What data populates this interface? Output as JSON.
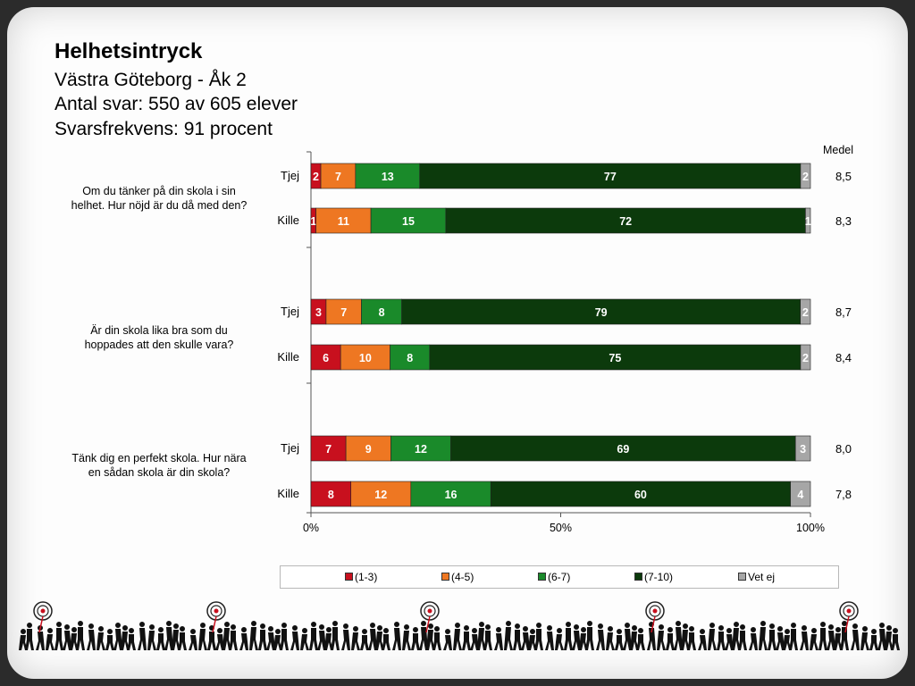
{
  "header": {
    "title": "Helhetsintryck",
    "subtitle": "Västra Göteborg - Åk 2",
    "answers": "Antal svar: 550 av 605 elever",
    "response_rate": "Svarsfrekvens: 91 procent"
  },
  "colors": {
    "c1_3": "#c8101e",
    "c4_5": "#ee7722",
    "c6_7": "#1a8a2a",
    "c7_10": "#0c3a0c",
    "vet_ej": "#a6a6a6"
  },
  "chart_data": {
    "type": "bar",
    "orientation": "horizontal",
    "stacked": "100%",
    "medel_header": "Medel",
    "xlim": [
      0,
      100
    ],
    "x_ticks": [
      "0%",
      "50%",
      "100%"
    ],
    "legend": [
      "(1-3)",
      "(4-5)",
      "(6-7)",
      "(7-10)",
      "Vet ej"
    ],
    "legend_position": "bottom",
    "groups": [
      {
        "question": "Om du tänker på din skola i sin helhet. Hur nöjd är du då med den?",
        "rows": [
          {
            "label": "Tjej",
            "values": [
              2,
              7,
              13,
              77,
              2
            ],
            "medel": "8,5"
          },
          {
            "label": "Kille",
            "values": [
              1,
              11,
              15,
              72,
              1
            ],
            "medel": "8,3"
          }
        ]
      },
      {
        "question": "Är din skola lika bra som du hoppades att den skulle vara?",
        "rows": [
          {
            "label": "Tjej",
            "values": [
              3,
              7,
              8,
              79,
              2
            ],
            "medel": "8,7"
          },
          {
            "label": "Kille",
            "values": [
              6,
              10,
              8,
              75,
              2
            ],
            "medel": "8,4"
          }
        ]
      },
      {
        "question": "Tänk dig en perfekt skola. Hur nära en sådan skola är din skola?",
        "rows": [
          {
            "label": "Tjej",
            "values": [
              7,
              9,
              12,
              69,
              3
            ],
            "medel": "8,0"
          },
          {
            "label": "Kille",
            "values": [
              8,
              12,
              16,
              60,
              4
            ],
            "medel": "7,8"
          }
        ]
      }
    ]
  }
}
